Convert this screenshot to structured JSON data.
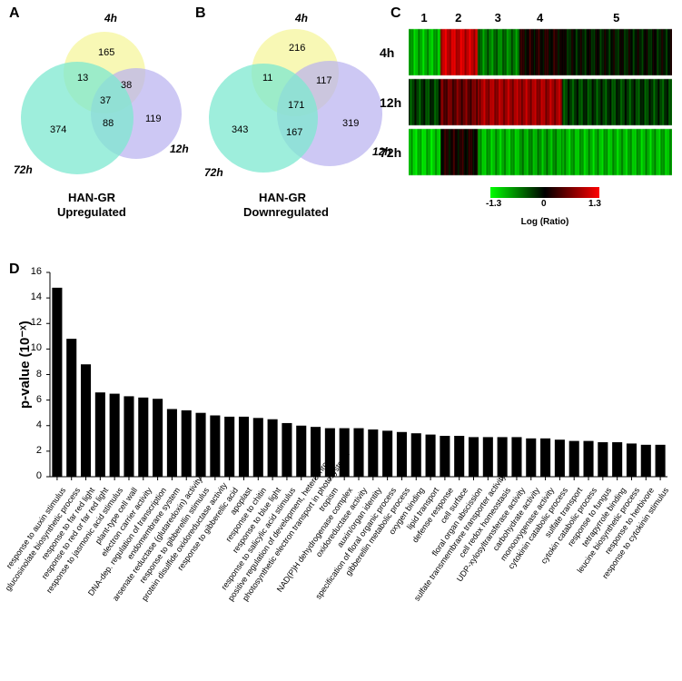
{
  "panelLabels": {
    "A": "A",
    "B": "B",
    "C": "C",
    "D": "D"
  },
  "timeLabels": {
    "t4": "4h",
    "t12": "12h",
    "t72": "72h"
  },
  "vennA": {
    "title1": "HAN-GR",
    "title2": "Upregulated",
    "colors": {
      "c4h": "#f7f7a8",
      "c12h": "#b8b0f0",
      "c72h": "#7de8d0",
      "ov_4_12": "#b0ddc0",
      "ov_4_72": "#f0b0b0",
      "ov_12_72": "#f0c080",
      "center": "#c8dd80"
    },
    "values": {
      "only4h": 165,
      "only12h": 119,
      "only72h": 374,
      "ov4_12": 38,
      "ov4_72": 13,
      "ov12_72": 88,
      "center": 37
    }
  },
  "vennB": {
    "title1": "HAN-GR",
    "title2": "Downregulated",
    "values": {
      "only4h": 216,
      "only12h": 319,
      "only72h": 343,
      "ov4_12": 117,
      "ov4_72": 11,
      "ov12_72": 167,
      "center": 171
    }
  },
  "heatmap": {
    "clusters": [
      "1",
      "2",
      "3",
      "4",
      "5"
    ],
    "rows": [
      "4h",
      "12h",
      "72h"
    ],
    "legend": {
      "min": -1.3,
      "mid": 0,
      "max": 1.3,
      "label": "Log (Ratio)",
      "minColor": "#00ff00",
      "midColor": "#000000",
      "maxColor": "#ff0000"
    },
    "clusterBoundaries": [
      0,
      0.12,
      0.26,
      0.42,
      0.58,
      1.0
    ]
  },
  "barchart": {
    "ylabel": "p-value (10⁻ˣ)",
    "ymax": 16,
    "ytick_step": 2,
    "bar_color": "#000000",
    "background": "#ffffff",
    "categories": [
      "response to auxin stimulus",
      "glucosinolate biosynthetic process",
      "response to far red light",
      "response to red or far red light",
      "response to jasmonic acid stimulus",
      "plant-type cell wall",
      "electron carrier activity",
      "DNA-dep. regulation of transcription",
      "endomembrane system",
      "arsenate reductase (glutaredoxin) activity",
      "response to gibberellin stimulus",
      "protein disulfide oxidoreductase activity",
      "response to gibberellic acid",
      "apoplast",
      "response to chitin",
      "response to blue light",
      "response to salicylic acid stimulus",
      "positive regulation of development, heterochronic",
      "photosynthetic electron transport in photosystem I",
      "tropism",
      "NAD(P)H dehydrogenase complex",
      "oxidoreductase activity",
      "auxin/organ identity",
      "specification of floral organic process",
      "gibberellin metabolic process",
      "oxygen binding",
      "lipid transport",
      "defense response",
      "cell surface",
      "floral organ abscission",
      "sulfate transmembrane transporter activity",
      "cell redox homeostasis",
      "UDP-xylosyltransferase activity",
      "carbohydrate activity",
      "monooxygenase activity",
      "cytokinin catabolic process",
      "sulfate transport",
      "cytokin catabolic process",
      "response to fungus",
      "tetrapyrrole binding",
      "leucine biosynthetic process",
      "response to herbivore",
      "response to cytokinin stimulus"
    ],
    "values": [
      14.8,
      10.8,
      8.8,
      6.6,
      6.5,
      6.3,
      6.2,
      6.1,
      5.3,
      5.2,
      5.0,
      4.8,
      4.7,
      4.7,
      4.6,
      4.5,
      4.2,
      4.0,
      3.9,
      3.8,
      3.8,
      3.8,
      3.7,
      3.6,
      3.5,
      3.4,
      3.3,
      3.2,
      3.2,
      3.1,
      3.1,
      3.1,
      3.1,
      3.0,
      3.0,
      2.9,
      2.8,
      2.8,
      2.7,
      2.7,
      2.6,
      2.5,
      2.5
    ]
  }
}
